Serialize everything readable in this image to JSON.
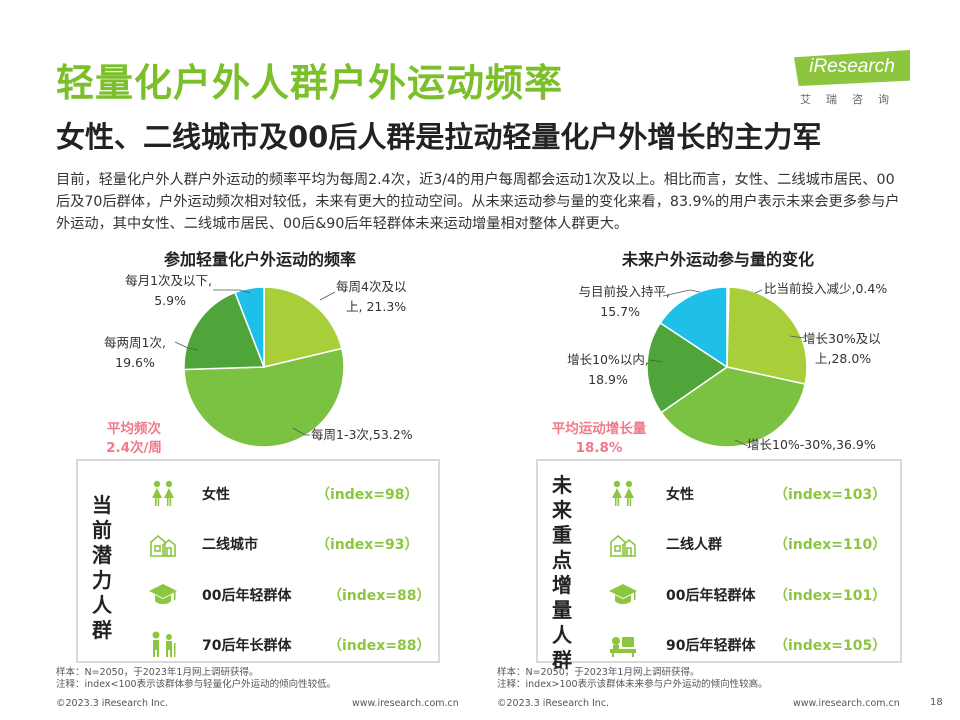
{
  "header": {
    "title": "轻量化户外人群户外运动频率",
    "subtitle": "女性、二线城市及00后人群是拉动轻量化户外增长的主力军",
    "logo_text": "iResearch",
    "logo_cn": "艾瑞咨询"
  },
  "intro": "目前，轻量化户外人群户外运动的频率平均为每周2.4次，近3/4的用户每周都会运动1次及以上。相比而言，女性、二线城市居民、00后及70后群体，户外运动频次相对较低，未来有更大的拉动空间。从未来运动参与量的变化来看，83.9%的用户表示未来会更多参与户外运动，其中女性、二线城市居民、00后&90后年轻群体未来运动增量相对整体人群更大。",
  "left": {
    "chart_title": "参加轻量化户外运动的频率",
    "avg_line1": "平均频次",
    "avg_line2": "2.4次/周",
    "panel_title": "当前潜力人群",
    "rows": [
      {
        "label": "女性",
        "index": "（index=98）"
      },
      {
        "label": "二线城市",
        "index": "（index=93）"
      },
      {
        "label": "00后年轻群体",
        "index": "（index=88）"
      },
      {
        "label": "70后年长群体",
        "index": "（index=88）"
      }
    ],
    "note1": "样本：N=2050，于2023年1月网上调研获得。",
    "note2": "注释：index<100表示该群体参与轻量化户外运动的倾向性较低。",
    "footer_left": "©2023.3 iResearch Inc.",
    "footer_right": "www.iresearch.com.cn"
  },
  "right": {
    "chart_title": "未来户外运动参与量的变化",
    "avg_line1": "平均运动增长量",
    "avg_line2": "18.8%",
    "panel_title": "未来重点增量人群",
    "rows": [
      {
        "label": "女性",
        "index": "（index=103）"
      },
      {
        "label": "二线人群",
        "index": "（index=110）"
      },
      {
        "label": "00后年轻群体",
        "index": "（index=101）"
      },
      {
        "label": "90后年轻群体",
        "index": "（index=105）"
      }
    ],
    "note1": "样本：N=2050，于2023年1月网上调研获得。",
    "note2": "注释：index>100表示该群体未来参与户外运动的倾向性较高。",
    "footer_left": "©2023.3 iResearch Inc.",
    "footer_right": "www.iresearch.com.cn"
  },
  "page_number": "18",
  "colors": {
    "title_green": "#7bbf2a",
    "slice_light": "#a8cf3a",
    "slice_big": "#7cc242",
    "slice_dark": "#4fa53a",
    "slice_cyan": "#1ec0ea",
    "avg_pink": "#f07a8a"
  },
  "chart_data": [
    {
      "type": "pie",
      "title": "参加轻量化户外运动的频率",
      "slices": [
        {
          "name": "每周4次及以上",
          "value": 21.3,
          "label_line1": "每周4次及以",
          "label_line2": "上, 21.3%",
          "color": "#a8cf3a"
        },
        {
          "name": "每周1-3次",
          "value": 53.2,
          "label_line1": "每周1-3次,53.2%",
          "color": "#7cc242"
        },
        {
          "name": "每两周1次",
          "value": 19.6,
          "label_line1": "每两周1次,",
          "label_line2": "19.6%",
          "color": "#4fa53a"
        },
        {
          "name": "每月1次及以下",
          "value": 5.9,
          "label_line1": "每月1次及以下,",
          "label_line2": "5.9%",
          "color": "#1ec0ea"
        }
      ]
    },
    {
      "type": "pie",
      "title": "未来户外运动参与量的变化",
      "slices": [
        {
          "name": "比当前投入减少",
          "value": 0.4,
          "label_line1": "比当前投入减少,0.4%",
          "color": "#a8cf3a"
        },
        {
          "name": "增长30%及以上",
          "value": 28.0,
          "label_line1": "增长30%及以",
          "label_line2": "上,28.0%",
          "color": "#a8cf3a"
        },
        {
          "name": "增长10%-30%",
          "value": 36.9,
          "label_line1": "增长10%-30%,36.9%",
          "color": "#7cc242"
        },
        {
          "name": "增长10%以内",
          "value": 18.9,
          "label_line1": "增长10%以内,",
          "label_line2": "18.9%",
          "color": "#4fa53a"
        },
        {
          "name": "与目前投入持平",
          "value": 15.7,
          "label_line1": "与目前投入持平,",
          "label_line2": "15.7%",
          "color": "#1ec0ea"
        }
      ]
    }
  ]
}
